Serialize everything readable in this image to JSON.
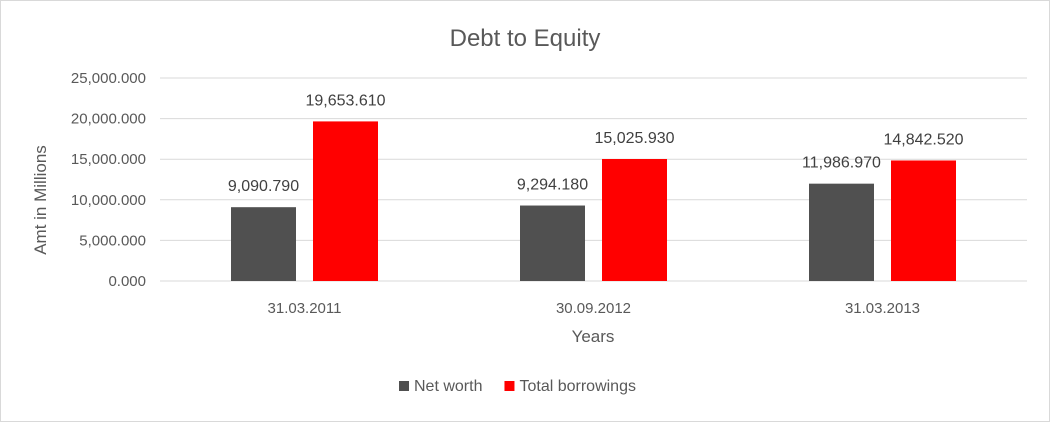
{
  "chart_data": {
    "type": "bar",
    "title": "Debt to Equity",
    "xlabel": "Years",
    "ylabel": "Amt in Millions",
    "categories": [
      "31.03.2011",
      "30.09.2012",
      "31.03.2013"
    ],
    "series": [
      {
        "name": "Net worth",
        "color": "#505050",
        "values": [
          9090.79,
          9294.18,
          11986.97
        ],
        "labels": [
          "9,090.790",
          "9,294.180",
          "11,986.970"
        ]
      },
      {
        "name": "Total borrowings",
        "color": "#ff0000",
        "values": [
          19653.61,
          15025.93,
          14842.52
        ],
        "labels": [
          "19,653.610",
          "15,025.930",
          "14,842.520"
        ]
      }
    ],
    "ylim": [
      0,
      25000
    ],
    "yticks": [
      0,
      5000,
      10000,
      15000,
      20000,
      25000
    ],
    "ytick_labels": [
      "0.000",
      "5,000.000",
      "10,000.000",
      "15,000.000",
      "20,000.000",
      "25,000.000"
    ],
    "grid": true,
    "legend_position": "bottom"
  }
}
